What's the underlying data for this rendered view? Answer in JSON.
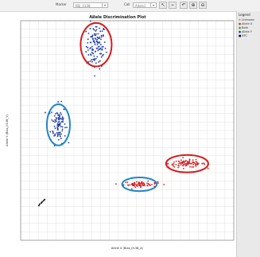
{
  "toolbar": {
    "marker_label": "Marker",
    "marker_value": "BSJ_0138",
    "call_label": "Call",
    "call_value": "Allele1",
    "tools": [
      {
        "name": "pointer-tool-button",
        "glyph": "↖"
      },
      {
        "name": "lasso-tool-button",
        "glyph": "⌁"
      },
      {
        "name": "undo-tool-button",
        "glyph": "↶"
      },
      {
        "name": "zoom-in-button",
        "glyph": "⊕"
      },
      {
        "name": "zoom-out-button",
        "glyph": "⊖"
      }
    ]
  },
  "legend": {
    "title": "Legend",
    "items": [
      {
        "label": "Unknown",
        "symbol": "×",
        "color": "#333333"
      },
      {
        "label": "Allele X",
        "symbol": "●",
        "color": "#d62020"
      },
      {
        "label": "Both",
        "symbol": "●",
        "color": "#2aa02a"
      },
      {
        "label": "Allele Y",
        "symbol": "●",
        "color": "#1a3aa8"
      },
      {
        "label": "NTC",
        "symbol": "■",
        "color": "#111111"
      }
    ]
  },
  "chart_data": {
    "type": "scatter",
    "title": "Allele Discrimination Plot",
    "xlabel": "Allele X (Bias_0138_X)",
    "ylabel": "Allele Y (Bias_0138_Y)",
    "xlim": [
      0.2,
      9.8
    ],
    "ylim": [
      0.2,
      9.8
    ],
    "xticks": [
      1.0,
      2.0,
      3.0,
      4.0,
      5.0,
      6.0,
      7.0,
      8.0,
      9.0
    ],
    "yticks": [
      1.0,
      2.5,
      4.0,
      5.5,
      7.0,
      8.5
    ],
    "xtick_labels": [
      "",
      "",
      "",
      "",
      "",
      "",
      "",
      "",
      ""
    ],
    "ytick_labels": [
      "",
      "",
      "",
      "",
      "",
      ""
    ],
    "grid": true,
    "colors": {
      "allele_x": "#d62020",
      "allele_y": "#1a3aa8",
      "ntc": "#111111",
      "highlight_red": "#d81b1b",
      "highlight_blue": "#1f86c9"
    },
    "clusters": [
      {
        "group": "allele_y",
        "cx": 3.6,
        "cy": 8.7,
        "sx": 0.22,
        "sy": 0.5,
        "n": 120
      },
      {
        "group": "allele_y",
        "cx": 1.9,
        "cy": 5.3,
        "sx": 0.17,
        "sy": 0.42,
        "n": 95
      },
      {
        "group": "allele_x",
        "cx": 5.6,
        "cy": 2.65,
        "sx": 0.38,
        "sy": 0.06,
        "n": 70
      },
      {
        "group": "allele_x",
        "cx": 7.7,
        "cy": 3.55,
        "sx": 0.42,
        "sy": 0.08,
        "n": 90
      }
    ],
    "ntc_points": [
      {
        "x": 1.02,
        "y": 1.72
      },
      {
        "x": 1.06,
        "y": 1.78
      },
      {
        "x": 1.13,
        "y": 1.83
      },
      {
        "x": 1.17,
        "y": 1.88
      },
      {
        "x": 1.23,
        "y": 1.93
      },
      {
        "x": 1.28,
        "y": 1.98
      }
    ],
    "highlights": [
      {
        "color": "red",
        "cx": 3.6,
        "cy": 8.75,
        "rx": 0.7,
        "ry": 0.95
      },
      {
        "color": "blue",
        "cx": 1.9,
        "cy": 5.25,
        "rx": 0.52,
        "ry": 0.9
      },
      {
        "color": "blue",
        "cx": 5.55,
        "cy": 2.65,
        "rx": 0.78,
        "ry": 0.3
      },
      {
        "color": "red",
        "cx": 7.7,
        "cy": 3.55,
        "rx": 0.95,
        "ry": 0.38
      }
    ]
  }
}
